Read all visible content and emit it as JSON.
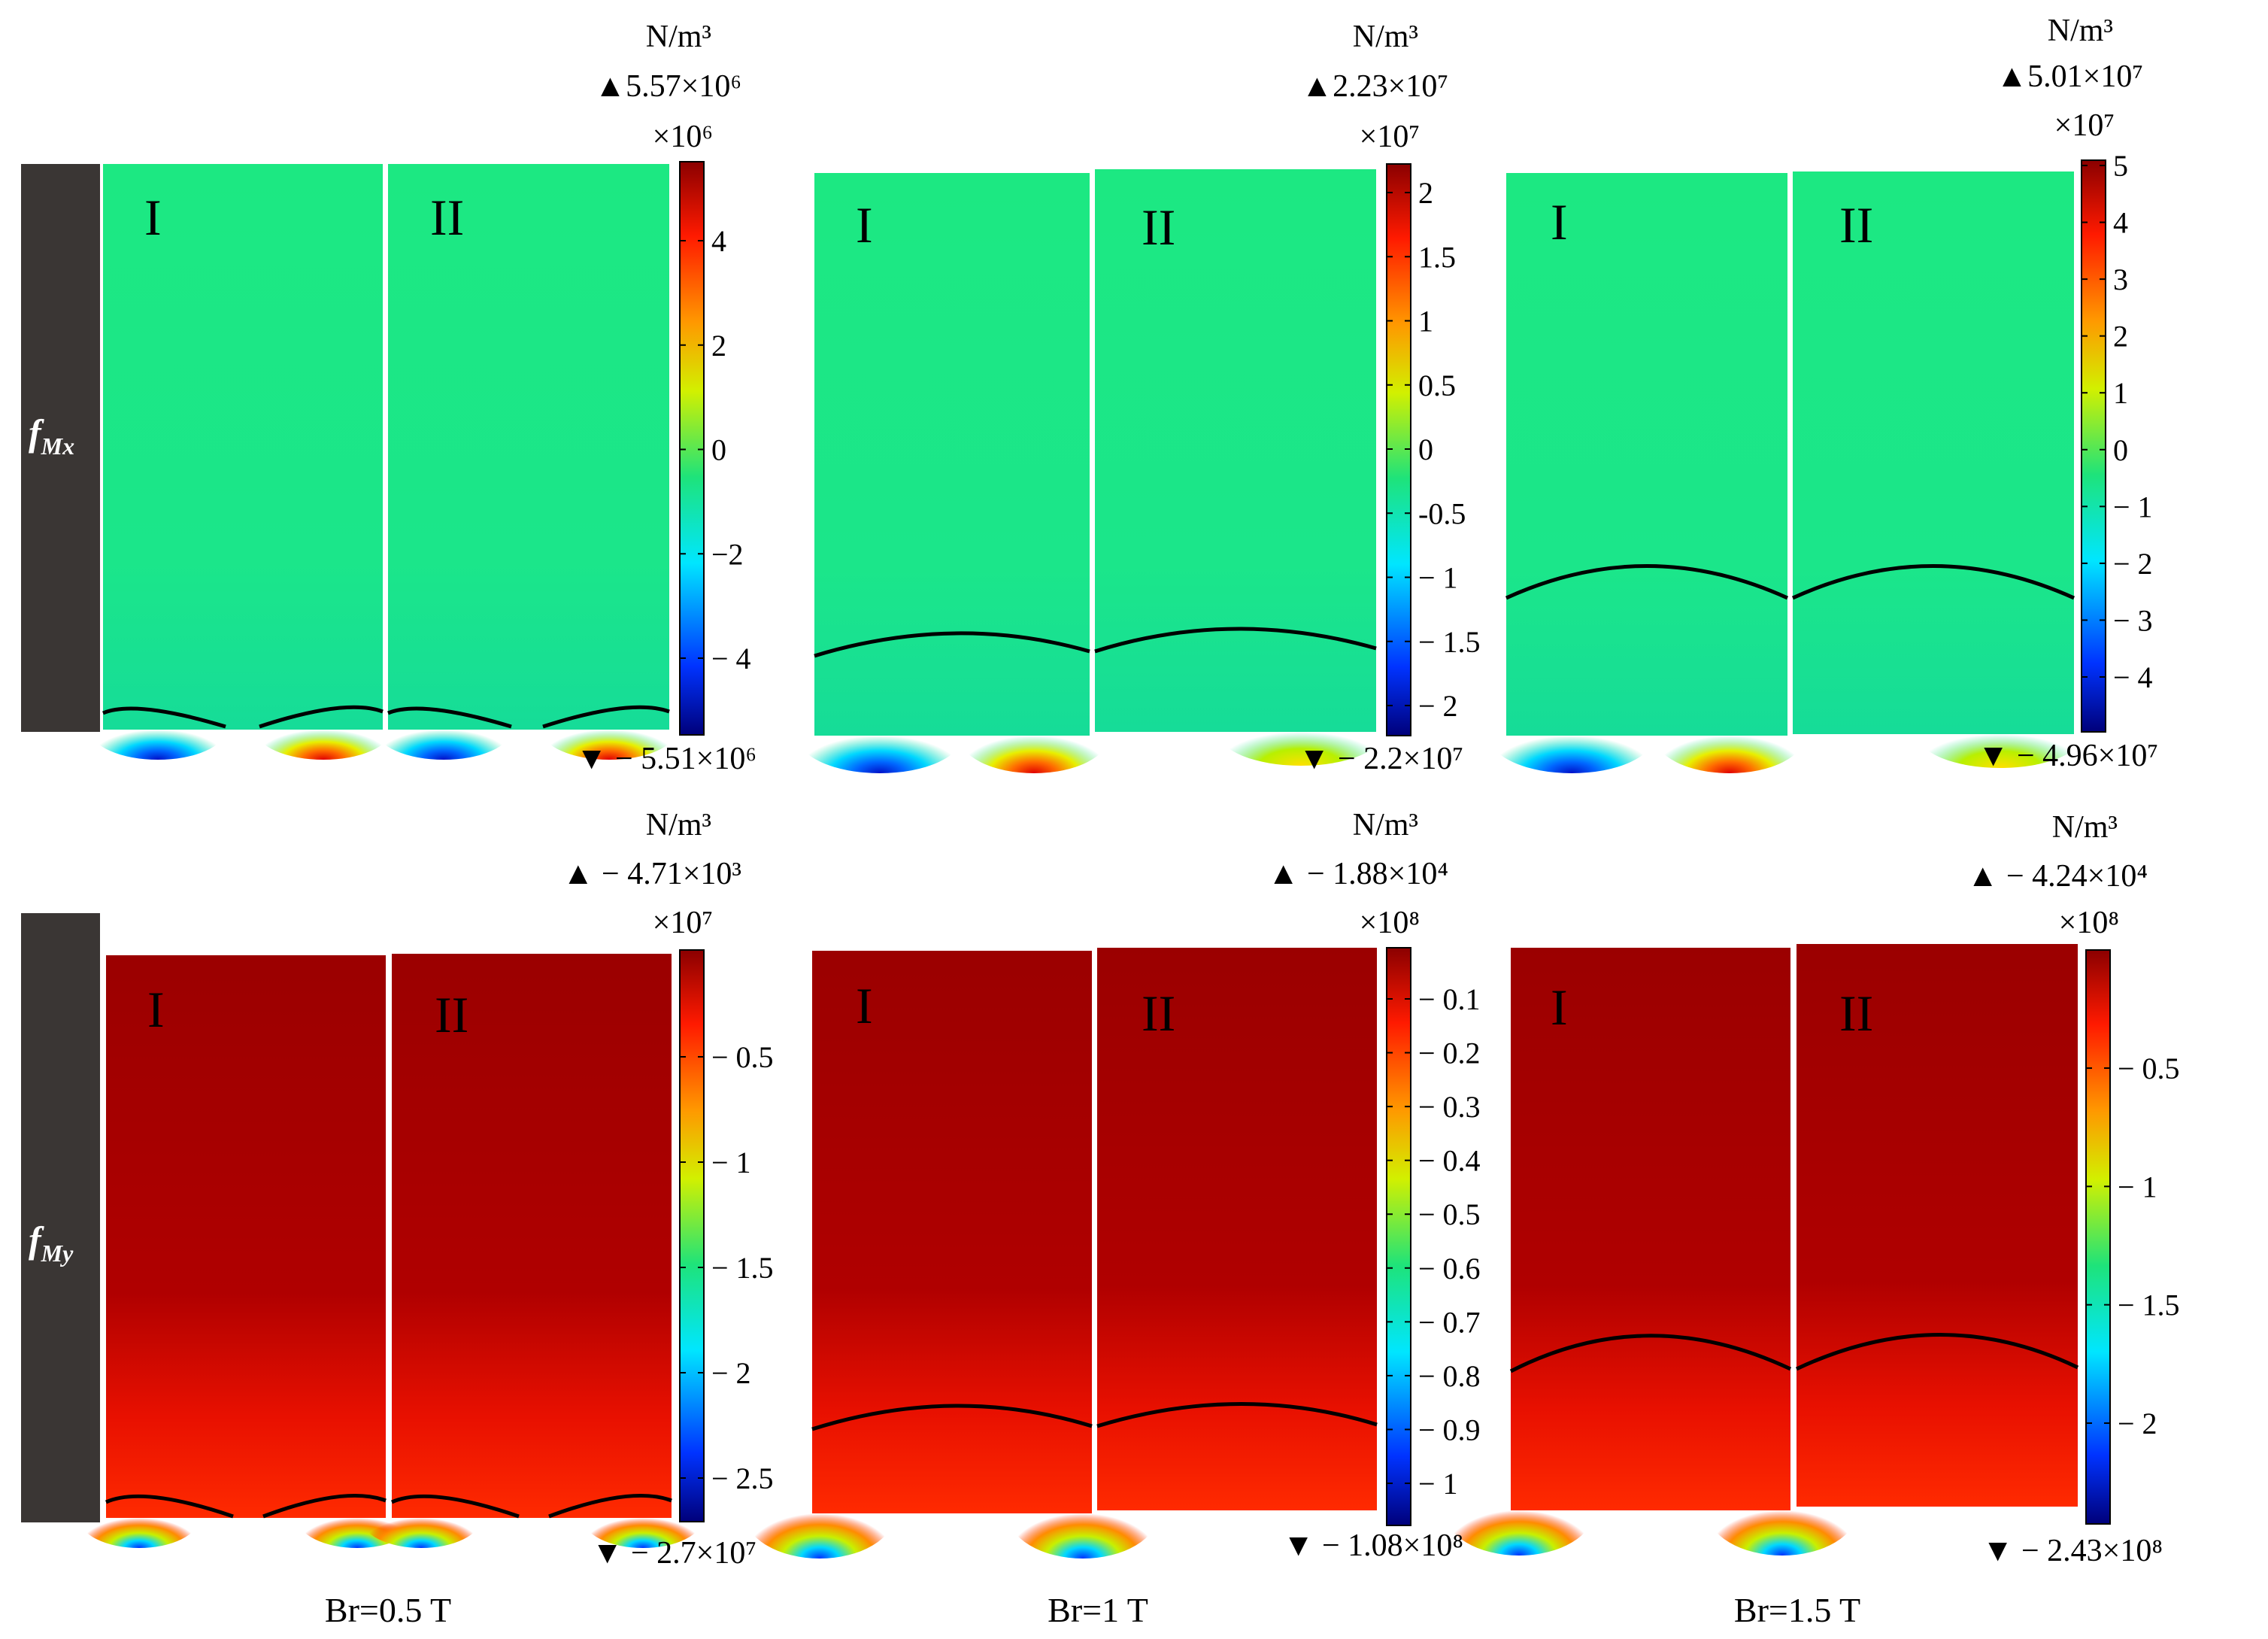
{
  "rows": [
    {
      "label": "f",
      "subscript": "Mx"
    },
    {
      "label": "f",
      "subscript": "My"
    }
  ],
  "region_labels": [
    "I",
    "II"
  ],
  "columns": [
    {
      "caption": "Br=0.5 T"
    },
    {
      "caption": "Br=1 T"
    },
    {
      "caption": "Br=1.5 T"
    }
  ],
  "unit": "N/m³",
  "colorbars": [
    {
      "max": "▲5.57×10⁶",
      "multiplier": "×10⁶",
      "ticks": [
        "4",
        "2",
        "0",
        "−2",
        "− 4"
      ],
      "min": "▼ − 5.51×10⁶"
    },
    {
      "max": "▲2.23×10⁷",
      "multiplier": "×10⁷",
      "ticks": [
        "2",
        "1.5",
        "1",
        "0.5",
        "0",
        "-0.5",
        "− 1",
        "− 1.5",
        "− 2"
      ],
      "min": "▼ − 2.2×10⁷"
    },
    {
      "max": "▲5.01×10⁷",
      "multiplier": "×10⁷",
      "ticks": [
        "5",
        "4",
        "3",
        "2",
        "1",
        "0",
        "− 1",
        "− 2",
        "− 3",
        "− 4"
      ],
      "min": "▼ − 4.96×10⁷"
    },
    {
      "max": "▲ − 4.71×10³",
      "multiplier": "×10⁷",
      "ticks": [
        "− 0.5",
        "− 1",
        "− 1.5",
        "− 2",
        "− 2.5"
      ],
      "min": "▼ − 2.7×10⁷"
    },
    {
      "max": "▲ − 1.88×10⁴",
      "multiplier": "×10⁸",
      "ticks": [
        "− 0.1",
        "− 0.2",
        "− 0.3",
        "− 0.4",
        "− 0.5",
        "− 0.6",
        "− 0.7",
        "− 0.8",
        "− 0.9",
        "− 1"
      ],
      "min": "▼ − 1.08×10⁸"
    },
    {
      "max": "▲ − 4.24×10⁴",
      "multiplier": "×10⁸",
      "ticks": [
        "− 0.5",
        "− 1",
        "− 1.5",
        "− 2"
      ],
      "min": "▼ − 2.43×10⁸"
    }
  ]
}
